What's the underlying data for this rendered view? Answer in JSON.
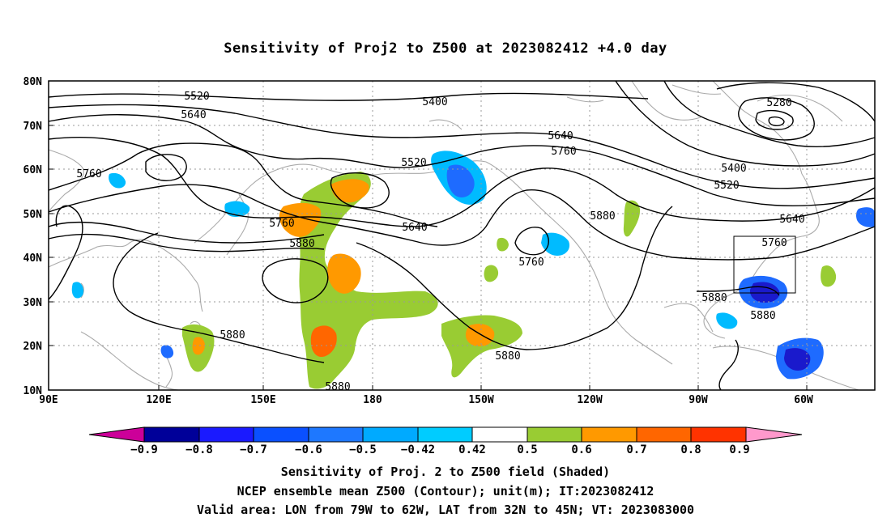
{
  "title": "Sensitivity of Proj2 to Z500 at 2023082412 +4.0 day",
  "map": {
    "lat_labels": [
      "80N",
      "70N",
      "60N",
      "50N",
      "40N",
      "30N",
      "20N",
      "10N"
    ],
    "lon_labels": [
      "90E",
      "120E",
      "150E",
      "180",
      "150W",
      "120W",
      "90W",
      "60W"
    ],
    "contour_labels": [
      "5520",
      "5400",
      "5280",
      "5640",
      "5640",
      "5760",
      "5520",
      "5760",
      "5400",
      "5520",
      "5640",
      "5640",
      "5760",
      "5880",
      "5880",
      "5760",
      "5760",
      "5880",
      "5880",
      "5880",
      "5880",
      "5880"
    ],
    "colors": {
      "neg_strong": "#1a1acc",
      "neg_mid": "#1e6bff",
      "neg_weak": "#00bbff",
      "pos_weak": "#99cc33",
      "pos_mid": "#ff9900",
      "pos_strong": "#ff6600",
      "coast": "#aaaaaa"
    }
  },
  "colorbar": {
    "tick_labels": [
      "−0.9",
      "−0.8",
      "−0.7",
      "−0.6",
      "−0.5",
      "−0.42",
      "0.42",
      "0.5",
      "0.6",
      "0.7",
      "0.8",
      "0.9"
    ],
    "colors": [
      "#cc0099",
      "#000099",
      "#1a1aff",
      "#0a50ff",
      "#1e78ff",
      "#00aaff",
      "#00ccff",
      "#ffffff",
      "#99cc33",
      "#ff9900",
      "#ff6600",
      "#ff3300",
      "#ff0000",
      "#ff99cc"
    ]
  },
  "captions": [
    "Sensitivity of Proj. 2 to Z500 field (Shaded)",
    "NCEP ensemble mean Z500 (Contour); unit(m); IT:2023082412",
    "Valid area: LON from 79W to 62W, LAT from 32N to 45N; VT: 2023083000"
  ]
}
